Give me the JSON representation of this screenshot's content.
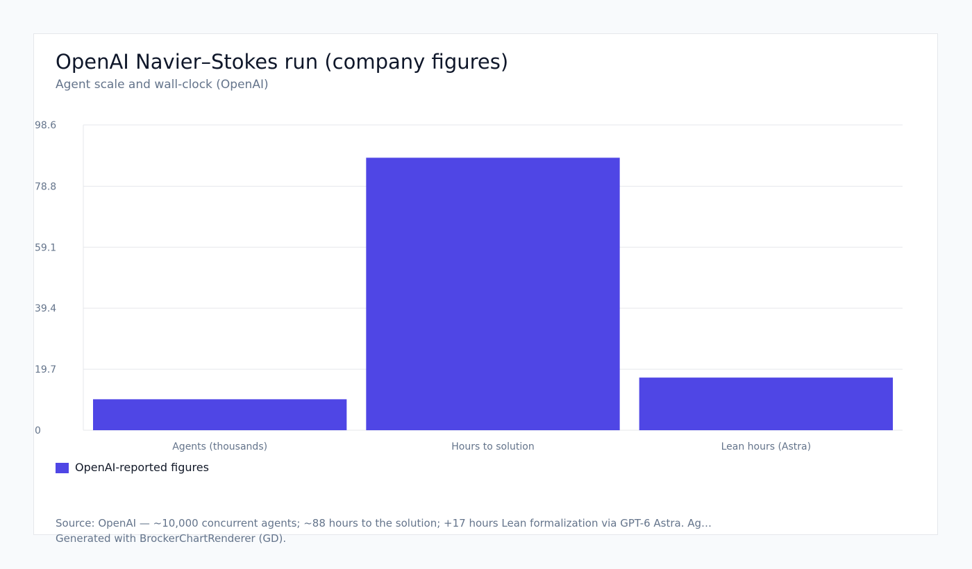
{
  "chart_data": {
    "type": "bar",
    "title": "OpenAI Navier–Stokes run (company figures)",
    "subtitle": "Agent scale and wall-clock (OpenAI)",
    "categories": [
      "Agents (thousands)",
      "Hours to solution",
      "Lean hours (Astra)"
    ],
    "series": [
      {
        "name": "OpenAI-reported figures",
        "values": [
          10,
          88,
          17
        ]
      }
    ],
    "y_ticks": [
      "0",
      "19.7",
      "39.4",
      "59.1",
      "78.8",
      "98.6"
    ],
    "ylim": [
      0,
      98.6
    ],
    "grid": true,
    "legend_position": "bottom-left",
    "colors": {
      "bar": "#4f46e5",
      "grid": "#e5e7eb",
      "axis_text": "#64748b"
    }
  },
  "footer": {
    "source": "Source: OpenAI — ~10,000 concurrent agents; ~88 hours to the solution; +17 hours Lean formalization via GPT-6 Astra. Ag…",
    "generated": "Generated with BrockerChartRenderer (GD)."
  }
}
